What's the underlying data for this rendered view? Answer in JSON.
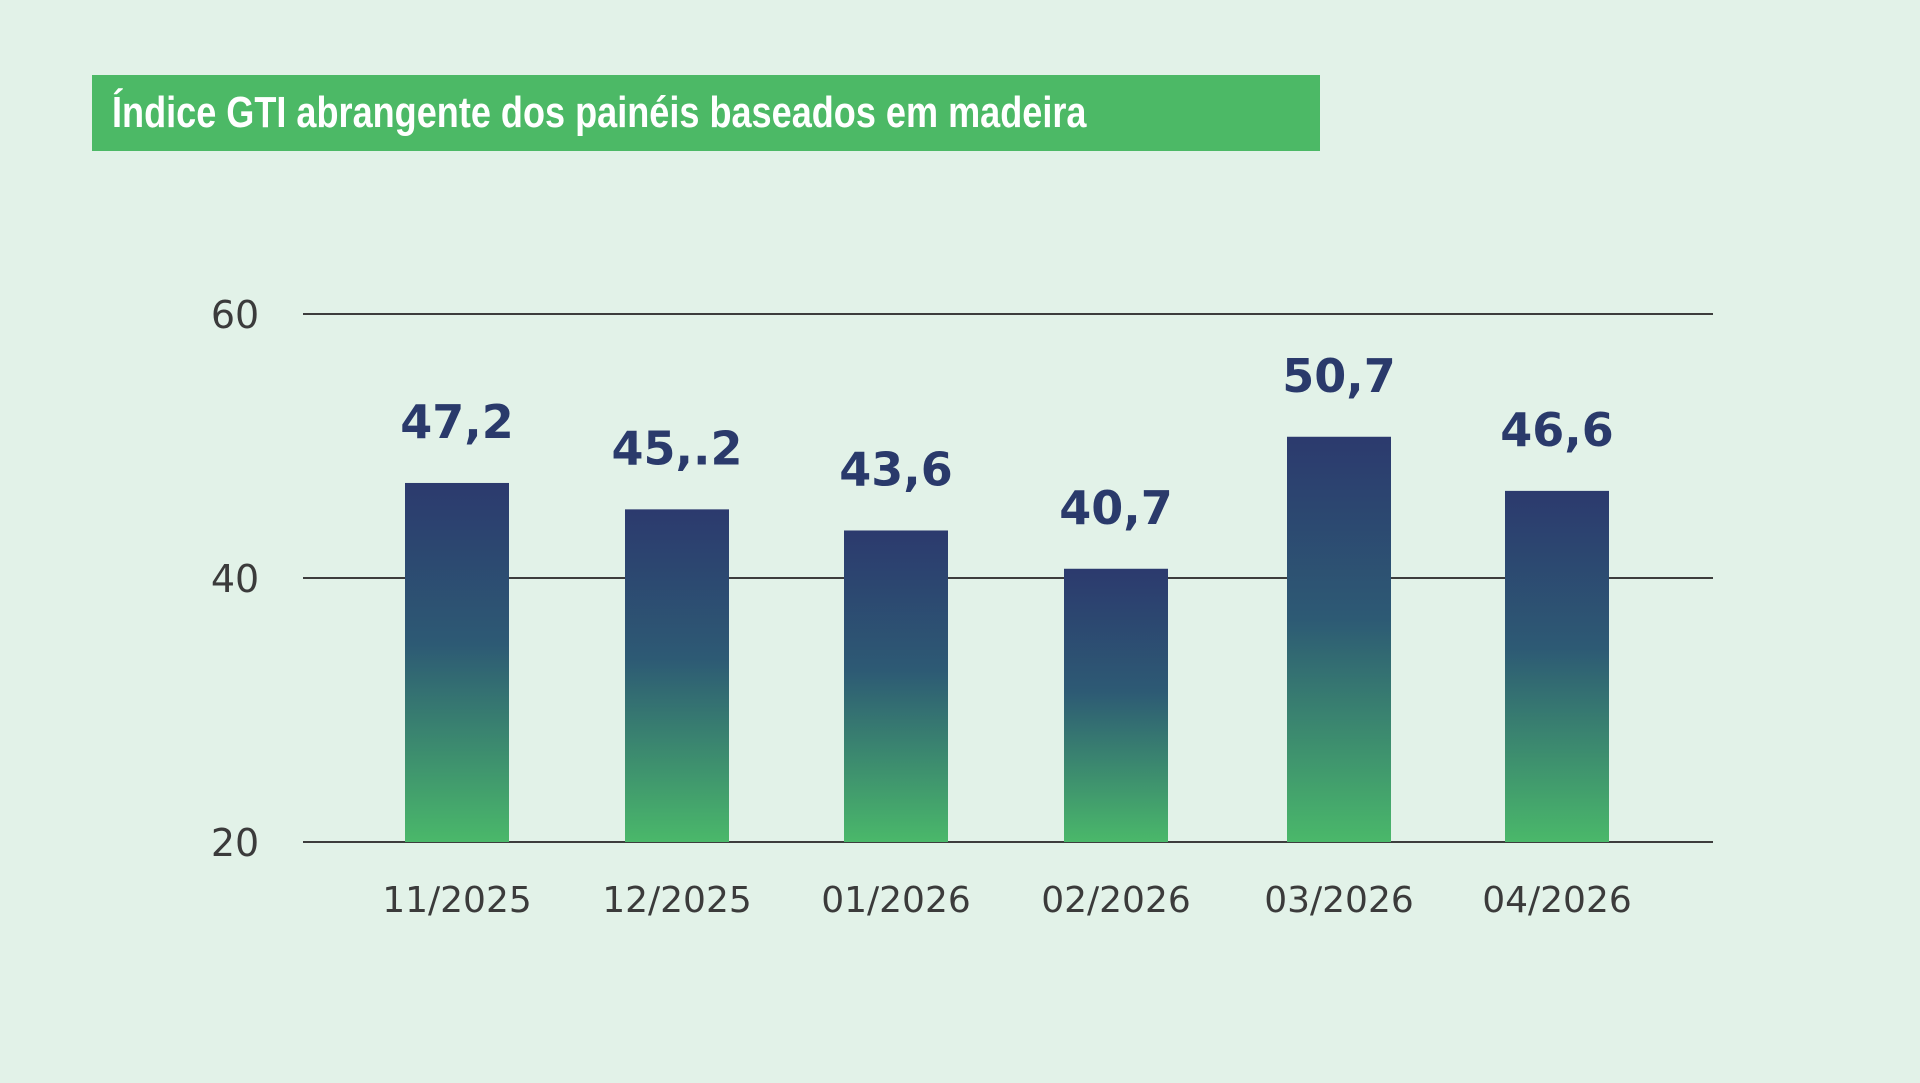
{
  "chart_data": {
    "type": "bar",
    "title": "Índice GTI abrangente dos painéis baseados em madeira",
    "categories": [
      "11/2025",
      "12/2025",
      "01/2026",
      "02/2026",
      "03/2026",
      "04/2026"
    ],
    "values": [
      47.2,
      45.2,
      43.6,
      40.7,
      50.7,
      46.6
    ],
    "value_labels": [
      "47,2",
      "45,.2",
      "43,6",
      "40,7",
      "50,7",
      "46,6"
    ],
    "ylim": [
      20,
      60
    ],
    "yticks": [
      20,
      40,
      60
    ],
    "xlabel": "",
    "ylabel": "",
    "grid": true,
    "colors": {
      "bar_top": "#2c3a6e",
      "bar_bottom": "#4ab86a",
      "title_bg": "#4cb966",
      "value_text": "#2a3a6b"
    }
  }
}
